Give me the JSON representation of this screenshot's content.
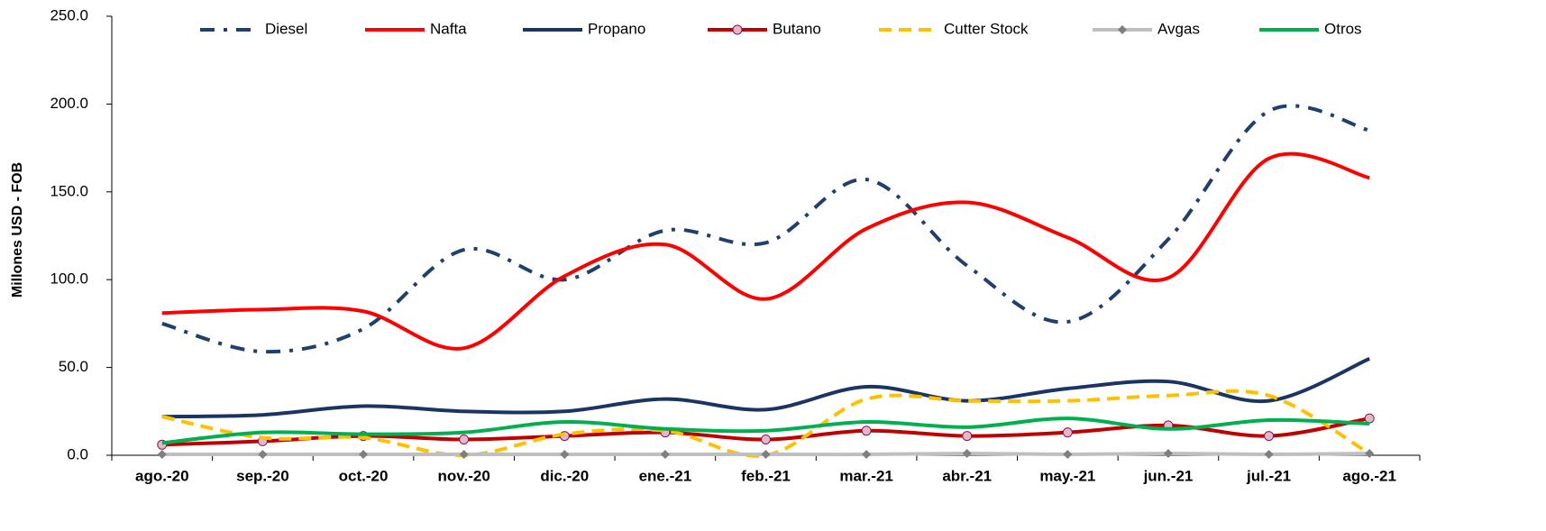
{
  "chart_data": {
    "type": "line",
    "y_label": "Millones USD - FOB",
    "categories": [
      "ago.-20",
      "sep.-20",
      "oct.-20",
      "nov.-20",
      "dic.-20",
      "ene.-21",
      "feb.-21",
      "mar.-21",
      "abr.-21",
      "may.-21",
      "jun.-21",
      "jul.-21",
      "ago.-21"
    ],
    "series": [
      {
        "name": "Diesel",
        "color": "#1f3f6e",
        "dash": "dashdot",
        "values": [
          75,
          59,
          72,
          117,
          100,
          128,
          121,
          157,
          108,
          76,
          123,
          196,
          185
        ]
      },
      {
        "name": "Nafta",
        "color": "#ff0000",
        "dash": "solid",
        "values": [
          81,
          83,
          82,
          61,
          102,
          120,
          89,
          129,
          144,
          124,
          101,
          169,
          158
        ]
      },
      {
        "name": "Propano",
        "color": "#1a3564",
        "dash": "solid",
        "values": [
          22,
          23,
          28,
          25,
          25,
          32,
          26,
          39,
          31,
          38,
          42,
          31,
          55
        ]
      },
      {
        "name": "Butano",
        "color": "#c00000",
        "dash": "solid",
        "marker": "circle",
        "values": [
          6,
          8,
          11,
          9,
          11,
          13,
          9,
          14,
          11,
          13,
          17,
          11,
          21
        ]
      },
      {
        "name": "Cutter Stock",
        "color": "#ffc000",
        "dash": "dashed",
        "values": [
          22,
          10,
          10,
          0,
          12,
          14,
          0,
          32,
          31,
          31,
          34,
          34,
          1
        ]
      },
      {
        "name": "Avgas",
        "color": "#bfbfbf",
        "dash": "solid",
        "marker": "diamond",
        "values": [
          0.5,
          0.5,
          0.5,
          0.5,
          0.5,
          0.5,
          0.5,
          0.5,
          1,
          0.5,
          1,
          0.5,
          1
        ]
      },
      {
        "name": "Otros",
        "color": "#00b050",
        "dash": "solid",
        "values": [
          7,
          13,
          12,
          13,
          19,
          15,
          14,
          19,
          16,
          21,
          15,
          20,
          18
        ]
      }
    ],
    "ylim": [
      0,
      250
    ],
    "yticks": [
      {
        "value": 0,
        "label": "0.0"
      },
      {
        "value": 50,
        "label": "50.0"
      },
      {
        "value": 100,
        "label": "100.0"
      },
      {
        "value": 150,
        "label": "150.0"
      },
      {
        "value": 200,
        "label": "200.0"
      },
      {
        "value": 250,
        "label": "250.0"
      }
    ],
    "legend": "top"
  }
}
